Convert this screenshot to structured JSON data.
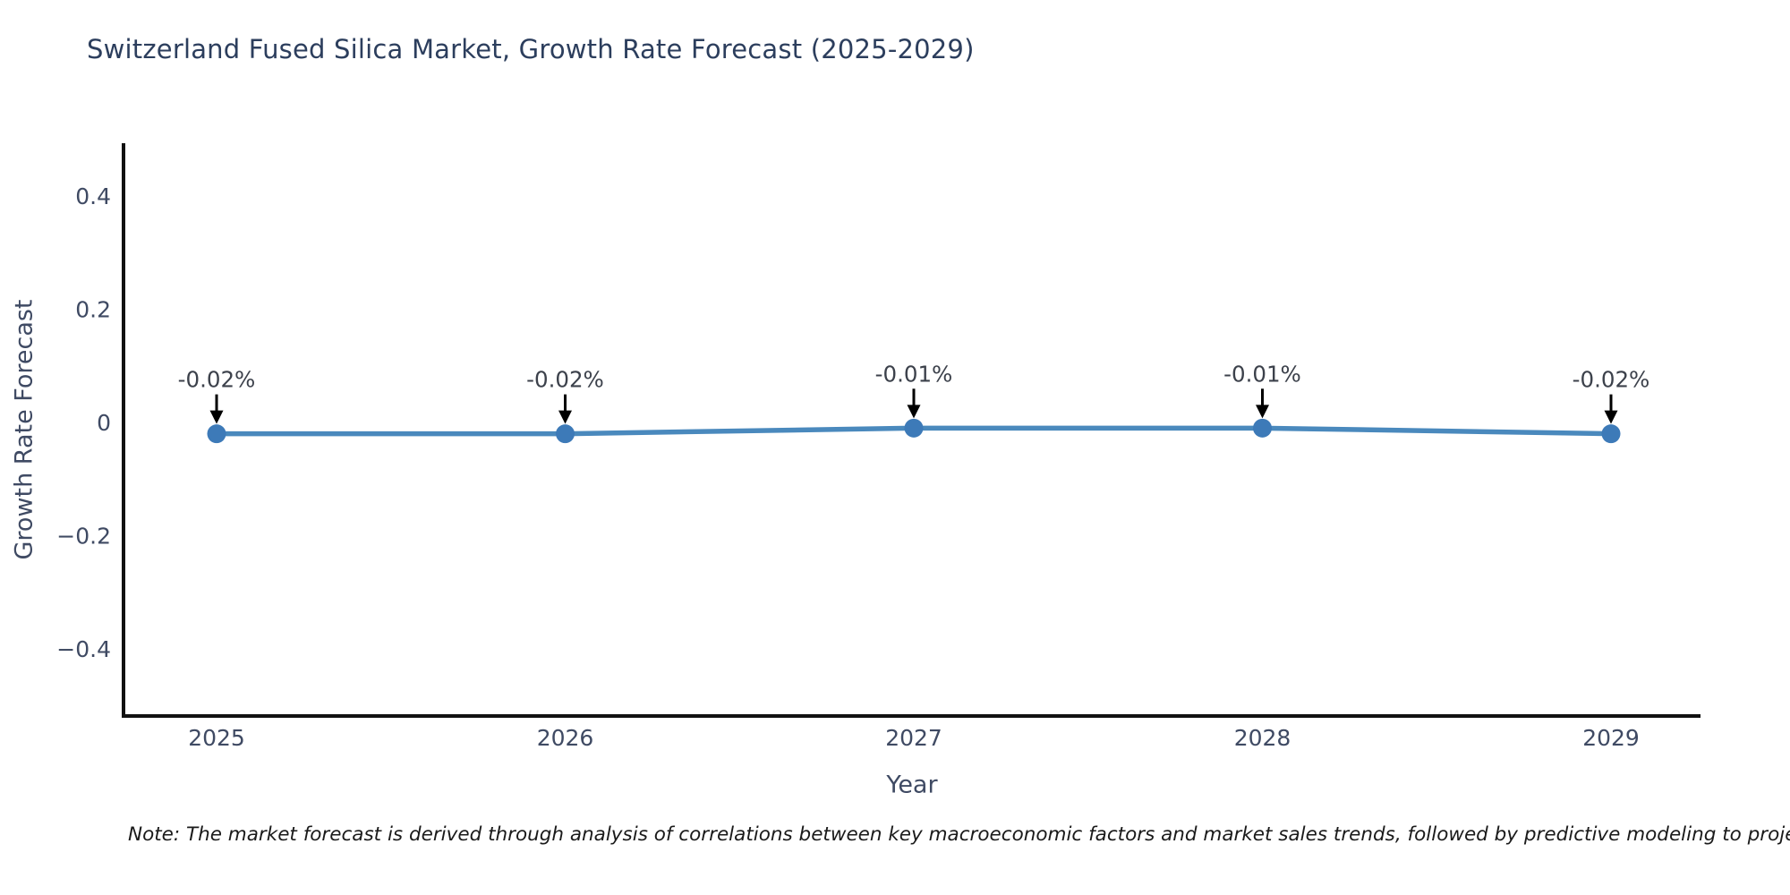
{
  "chart_data": {
    "type": "line",
    "title": "Switzerland Fused Silica Market, Growth Rate Forecast (2025-2029)",
    "x": [
      "2025",
      "2026",
      "2027",
      "2028",
      "2029"
    ],
    "values": [
      -0.02,
      -0.02,
      -0.01,
      -0.01,
      -0.02
    ],
    "point_labels": [
      "-0.02%",
      "-0.02%",
      "-0.01%",
      "-0.01%",
      "-0.02%"
    ],
    "xlabel": "Year",
    "ylabel": "Growth Rate Forecast",
    "ytick_values": [
      0.4,
      0.2,
      0,
      -0.2,
      -0.4
    ],
    "ytick_labels": [
      "0.4",
      "0.2",
      "0",
      "−0.2",
      "−0.4"
    ],
    "ylim": [
      -0.52,
      0.49
    ],
    "grid": false,
    "legend": false,
    "annotations_arrows": true
  },
  "note": "Note: The market forecast is derived through analysis of correlations between key macroeconomic factors and market sales trends, followed by predictive modeling to project future sa",
  "colors": {
    "line": "#4a89bd",
    "marker": "#3d7ab8",
    "axis": "#111111",
    "tick_text": "#3f4a63",
    "title_text": "#2c3e5d",
    "annotation_text": "#3c414b",
    "arrow": "#000000",
    "note_text": "#1a1a1a"
  }
}
